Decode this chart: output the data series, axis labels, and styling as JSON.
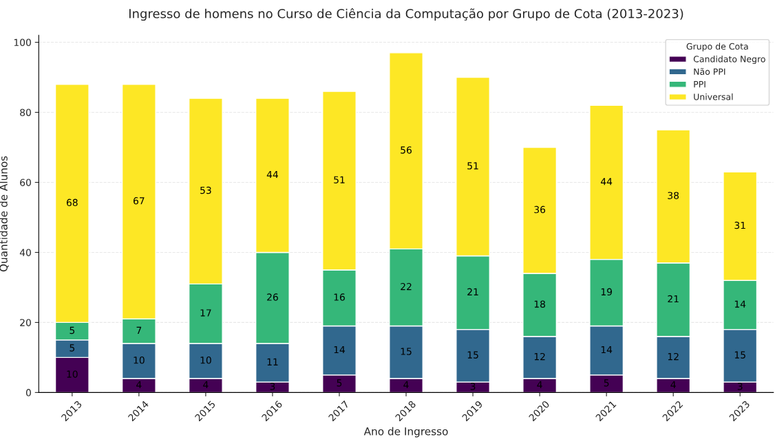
{
  "chart_data": {
    "type": "bar",
    "title": "Ingresso de homens no Curso de Ciência da Computação por Grupo de Cota (2013-2023)",
    "xlabel": "Ano de Ingresso",
    "ylabel": "Quantidade de Alunos",
    "legend_title": "Grupo de Cota",
    "categories": [
      "2013",
      "2014",
      "2015",
      "2016",
      "2017",
      "2018",
      "2019",
      "2020",
      "2021",
      "2022",
      "2023"
    ],
    "stacked": true,
    "series": [
      {
        "name": "Candidato Negro",
        "color": "#440154",
        "values": [
          10,
          4,
          4,
          3,
          5,
          4,
          3,
          4,
          5,
          4,
          3
        ]
      },
      {
        "name": "Não PPI",
        "color": "#31688e",
        "values": [
          5,
          10,
          10,
          11,
          14,
          15,
          15,
          12,
          14,
          12,
          15
        ]
      },
      {
        "name": "PPI",
        "color": "#35b779",
        "values": [
          5,
          7,
          17,
          26,
          16,
          22,
          21,
          18,
          19,
          21,
          14
        ]
      },
      {
        "name": "Universal",
        "color": "#fde725",
        "values": [
          68,
          67,
          53,
          44,
          51,
          56,
          51,
          36,
          44,
          38,
          31
        ]
      }
    ],
    "ylim": [
      0,
      102
    ],
    "yticks": [
      0,
      20,
      40,
      60,
      80,
      100
    ],
    "grid": "y",
    "legend": "top right",
    "data_labels": true
  }
}
